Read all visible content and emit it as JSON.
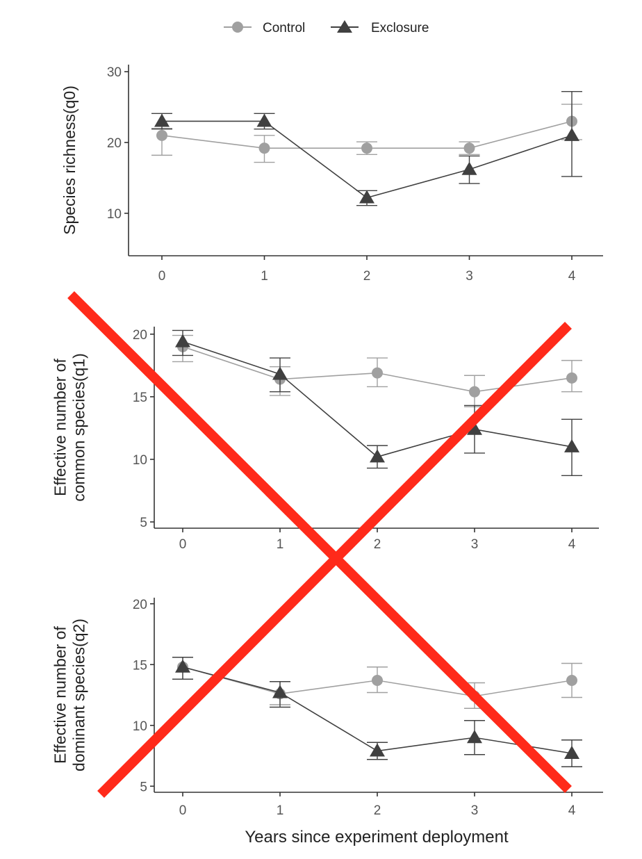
{
  "colors": {
    "control": "#a0a0a0",
    "exclosure": "#404040",
    "cross": "#ff2a1a",
    "axis": "#333333"
  },
  "legend": {
    "placement": "top-center",
    "items": [
      {
        "label": "Control",
        "shape": "circle"
      },
      {
        "label": "Exclosure",
        "shape": "triangle"
      }
    ]
  },
  "xlabel": "Years since experiment deployment",
  "overlay": {
    "type": "red-x-cross-out",
    "covers": "panels 2 and 3"
  },
  "chart_data": [
    {
      "type": "line",
      "title": "",
      "ylabel": "Species richness(q0)",
      "ylim": [
        4,
        31
      ],
      "yticks": [
        10,
        20,
        30
      ],
      "x": [
        0,
        1,
        2,
        3,
        4
      ],
      "xticks": [
        "0",
        "1",
        "2",
        "3",
        "4"
      ],
      "series": [
        {
          "name": "Control",
          "values": [
            21,
            19.2,
            19.2,
            19.2,
            23
          ],
          "err_lo": [
            18.2,
            17.2,
            18.3,
            18.3,
            20.4
          ],
          "err_hi": [
            22,
            21,
            20.1,
            20.1,
            25.4
          ]
        },
        {
          "name": "Exclosure",
          "values": [
            23,
            23,
            12.2,
            16.2,
            21
          ],
          "err_lo": [
            21.9,
            21.9,
            11.1,
            14.2,
            15.2
          ],
          "err_hi": [
            24.1,
            24.1,
            13.2,
            18.1,
            27.2
          ]
        }
      ]
    },
    {
      "type": "line",
      "title": "",
      "ylabel": "Effective number of\ncommon species(q1)",
      "ylim": [
        4.5,
        20.6
      ],
      "yticks": [
        5,
        10,
        15,
        20
      ],
      "x": [
        0,
        1,
        2,
        3,
        4
      ],
      "xticks": [
        "0",
        "1",
        "2",
        "3",
        "4"
      ],
      "series": [
        {
          "name": "Control",
          "values": [
            19,
            16.4,
            16.9,
            15.4,
            16.5
          ],
          "err_lo": [
            17.8,
            15.1,
            15.8,
            14.2,
            15.4
          ],
          "err_hi": [
            19.9,
            17.4,
            18.1,
            16.7,
            17.9
          ]
        },
        {
          "name": "Exclosure",
          "values": [
            19.4,
            16.8,
            10.2,
            12.4,
            11
          ],
          "err_lo": [
            18.3,
            15.4,
            9.3,
            10.5,
            8.7
          ],
          "err_hi": [
            20.3,
            18.1,
            11.1,
            14.3,
            13.2
          ]
        }
      ]
    },
    {
      "type": "line",
      "title": "",
      "ylabel": "Effective number of\ndominant species(q2)",
      "ylim": [
        4.5,
        20.5
      ],
      "yticks": [
        5,
        10,
        15,
        20
      ],
      "x": [
        0,
        1,
        2,
        3,
        4
      ],
      "xticks": [
        "0",
        "1",
        "2",
        "3",
        "4"
      ],
      "series": [
        {
          "name": "Control",
          "values": [
            14.8,
            12.6,
            13.7,
            12.4,
            13.7
          ],
          "err_lo": [
            13.8,
            11.7,
            12.7,
            11.4,
            12.3
          ],
          "err_hi": [
            15.6,
            13.6,
            14.8,
            13.5,
            15.1
          ]
        },
        {
          "name": "Exclosure",
          "values": [
            14.8,
            12.7,
            7.9,
            9,
            7.7
          ],
          "err_lo": [
            13.8,
            11.5,
            7.2,
            7.6,
            6.6
          ],
          "err_hi": [
            15.6,
            13.6,
            8.6,
            10.4,
            8.8
          ]
        }
      ]
    }
  ]
}
